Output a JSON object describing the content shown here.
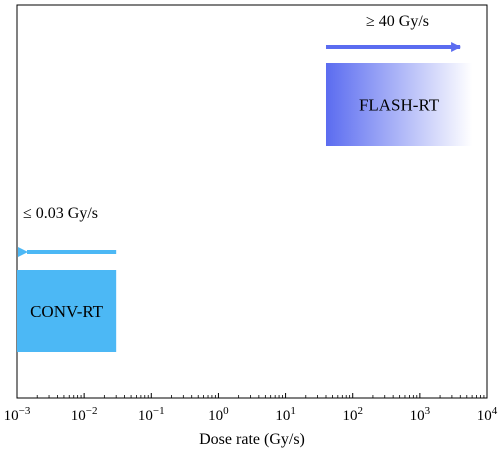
{
  "chart_data": {
    "type": "range",
    "xlabel": "Dose rate (Gy/s)",
    "xscale": "log",
    "xlim": [
      0.001,
      10000
    ],
    "x_ticks": [
      {
        "value": 0.001,
        "base": "10",
        "exp": "−3"
      },
      {
        "value": 0.01,
        "base": "10",
        "exp": "−2"
      },
      {
        "value": 0.1,
        "base": "10",
        "exp": "−1"
      },
      {
        "value": 1,
        "base": "10",
        "exp": "0"
      },
      {
        "value": 10,
        "base": "10",
        "exp": "1"
      },
      {
        "value": 100,
        "base": "10",
        "exp": "2"
      },
      {
        "value": 1000,
        "base": "10",
        "exp": "3"
      },
      {
        "value": 10000,
        "base": "10",
        "exp": "4"
      }
    ],
    "ranges": [
      {
        "label": "CONV-RT",
        "x_start": 0.001,
        "x_end": 0.03,
        "arrow_label": "≤ 0.03 Gy/s",
        "arrow_direction": "left",
        "fill": "gradient",
        "color": "#4cb8f5",
        "color_end": "#4cb8f5"
      },
      {
        "label": "FLASH-RT",
        "x_start": 40,
        "x_end": 6000,
        "arrow_label": "≥ 40 Gy/s",
        "arrow_direction": "right",
        "fill": "gradient",
        "color": "#5b6cf0",
        "color_end": "#ffffff"
      }
    ]
  }
}
